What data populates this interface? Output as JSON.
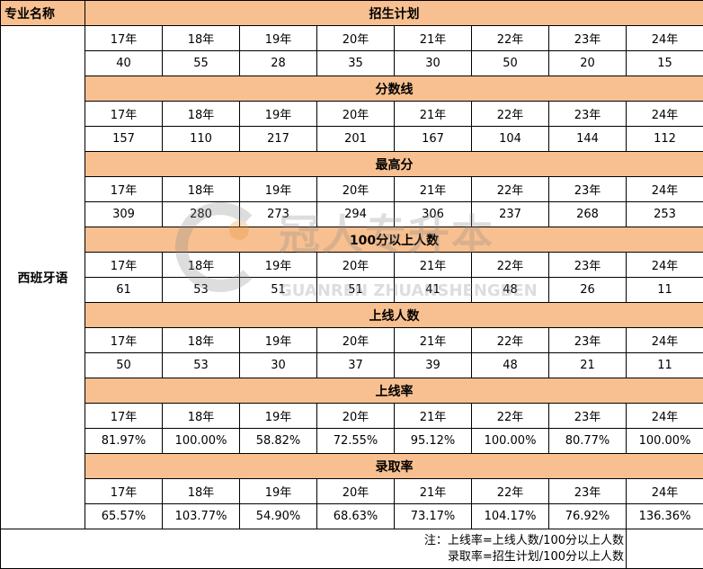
{
  "corner": "专业名称",
  "major": "西班牙语",
  "years": [
    "17年",
    "18年",
    "19年",
    "20年",
    "21年",
    "22年",
    "23年",
    "24年"
  ],
  "sections": [
    {
      "title": "招生计划",
      "values": [
        "40",
        "55",
        "28",
        "35",
        "30",
        "50",
        "20",
        "15"
      ]
    },
    {
      "title": "分数线",
      "values": [
        "157",
        "110",
        "217",
        "201",
        "167",
        "104",
        "144",
        "112"
      ]
    },
    {
      "title": "最高分",
      "values": [
        "309",
        "280",
        "273",
        "294",
        "306",
        "237",
        "268",
        "253"
      ]
    },
    {
      "title": "100分以上人数",
      "values": [
        "61",
        "53",
        "51",
        "51",
        "41",
        "48",
        "26",
        "11"
      ]
    },
    {
      "title": "上线人数",
      "values": [
        "50",
        "53",
        "30",
        "37",
        "39",
        "48",
        "21",
        "11"
      ]
    },
    {
      "title": "上线率",
      "values": [
        "81.97%",
        "100.00%",
        "58.82%",
        "72.55%",
        "95.12%",
        "100.00%",
        "80.77%",
        "100.00%"
      ]
    },
    {
      "title": "录取率",
      "values": [
        "65.57%",
        "103.77%",
        "54.90%",
        "68.63%",
        "73.17%",
        "104.17%",
        "76.92%",
        "136.36%"
      ]
    }
  ],
  "note": {
    "line1": "注：上线率=上线人数/100分以上人数",
    "line2": "录取率=招生计划/100分以上人数"
  },
  "watermark": {
    "text": "冠人专升本",
    "pinyin": "GUANREN ZHUANSHENGBEN"
  },
  "colors": {
    "header": "#f8c090"
  }
}
